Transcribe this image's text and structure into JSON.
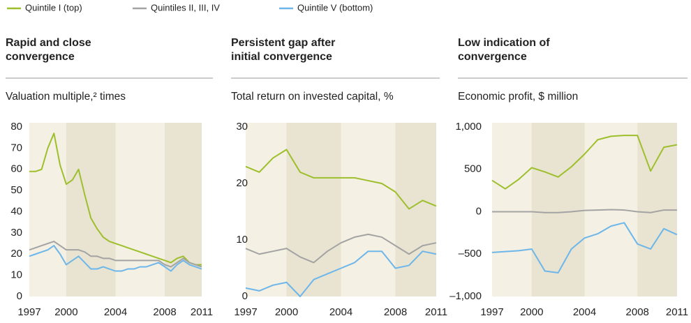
{
  "legend": [
    {
      "name": "Quintile I (top)",
      "color": "#9dbf2c"
    },
    {
      "name": "Quintiles II, III, IV",
      "color": "#a3a3a3"
    },
    {
      "name": "Quintile V (bottom)",
      "color": "#6db6ea"
    }
  ],
  "chart_data": [
    {
      "type": "line",
      "title": [
        "Rapid and close",
        "convergence"
      ],
      "subtitle": "Valuation multiple,² times",
      "x": [
        1997,
        1997.5,
        1998,
        1998.5,
        1999,
        1999.5,
        2000,
        2000.5,
        2001,
        2001.5,
        2002,
        2002.5,
        2003,
        2003.5,
        2004,
        2004.5,
        2005,
        2005.5,
        2006,
        2006.5,
        2007,
        2007.5,
        2008,
        2008.5,
        2009,
        2009.5,
        2010,
        2010.5,
        2011
      ],
      "series": [
        {
          "values": [
            59,
            59,
            60,
            70,
            77,
            62,
            53,
            55,
            60,
            48,
            37,
            32,
            28,
            26,
            25,
            24,
            23,
            22,
            21,
            20,
            19,
            18,
            17,
            16,
            18,
            19,
            16,
            15,
            15
          ]
        },
        {
          "values": [
            22,
            23,
            24,
            25,
            26,
            24,
            22,
            22,
            22,
            21,
            19,
            19,
            18,
            18,
            17,
            17,
            17,
            17,
            17,
            17,
            17,
            17,
            15,
            14,
            16,
            18,
            16,
            15,
            14
          ]
        },
        {
          "values": [
            19,
            20,
            21,
            22,
            24,
            20,
            15,
            17,
            19,
            16,
            13,
            13,
            14,
            13,
            12,
            12,
            13,
            13,
            14,
            14,
            15,
            16,
            14,
            12,
            15,
            17,
            15,
            14,
            13
          ]
        }
      ],
      "xlim": [
        1997,
        2011
      ],
      "xticks": [
        1997,
        2000,
        2004,
        2008,
        2011
      ],
      "ylim": [
        0,
        80
      ],
      "yticks": [
        0,
        10,
        20,
        30,
        40,
        50,
        60,
        70,
        80
      ],
      "shaded": [
        [
          2000,
          2004
        ],
        [
          2008,
          2011
        ]
      ]
    },
    {
      "type": "line",
      "title": [
        "Persistent gap after",
        "initial convergence"
      ],
      "subtitle": "Total return on invested capital, %",
      "x": [
        1997,
        1998,
        1999,
        2000,
        2001,
        2002,
        2003,
        2004,
        2005,
        2006,
        2007,
        2008,
        2009,
        2010,
        2011
      ],
      "series": [
        {
          "values": [
            23,
            22,
            24.5,
            26,
            22,
            21,
            21,
            21,
            21,
            20.5,
            20,
            18.5,
            15.5,
            17,
            16
          ]
        },
        {
          "values": [
            8.5,
            7.5,
            8,
            8.5,
            7,
            6,
            8,
            9.5,
            10.5,
            11,
            10.5,
            9,
            7.5,
            9,
            9.5
          ]
        },
        {
          "values": [
            1.5,
            1,
            2,
            2.5,
            0,
            3,
            4,
            5,
            6,
            8,
            8,
            5,
            5.5,
            8,
            7.5
          ]
        }
      ],
      "xlim": [
        1997,
        2011
      ],
      "xticks": [
        1997,
        2000,
        2004,
        2008,
        2011
      ],
      "ylim": [
        0,
        30
      ],
      "yticks": [
        0,
        10,
        20,
        30
      ],
      "shaded": [
        [
          2000,
          2004
        ],
        [
          2008,
          2011
        ]
      ]
    },
    {
      "type": "line",
      "title": [
        "Low indication of",
        "convergence"
      ],
      "subtitle": "Economic profit, $ million",
      "x": [
        1997,
        1998,
        1999,
        2000,
        2001,
        2002,
        2003,
        2004,
        2005,
        2006,
        2007,
        2008,
        2009,
        2010,
        2011
      ],
      "series": [
        {
          "values": [
            370,
            270,
            380,
            520,
            470,
            410,
            530,
            680,
            850,
            890,
            900,
            900,
            480,
            760,
            790
          ]
        },
        {
          "values": [
            0,
            0,
            0,
            0,
            -10,
            -10,
            0,
            15,
            20,
            25,
            20,
            0,
            -10,
            20,
            20
          ]
        },
        {
          "values": [
            -480,
            -470,
            -460,
            -440,
            -700,
            -720,
            -440,
            -310,
            -260,
            -170,
            -130,
            -380,
            -440,
            -200,
            -270
          ]
        }
      ],
      "xlim": [
        1997,
        2011
      ],
      "xticks": [
        1997,
        2000,
        2004,
        2008,
        2011
      ],
      "ylim": [
        -1000,
        1000
      ],
      "yticks": [
        {
          "value": -1000,
          "label": "–1,000"
        },
        {
          "value": -500,
          "label": "–500"
        },
        0,
        500,
        {
          "value": 1000,
          "label": "1,000"
        }
      ],
      "shaded": [
        [
          2000,
          2004
        ],
        [
          2008,
          2011
        ]
      ]
    }
  ]
}
